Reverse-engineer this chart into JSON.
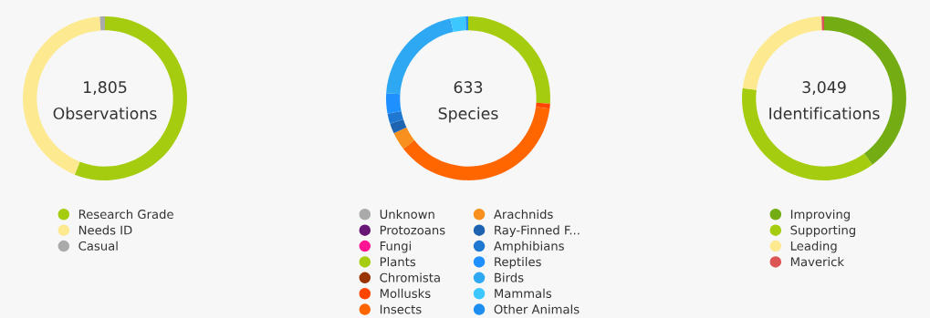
{
  "chart_data": [
    {
      "type": "donut",
      "title": "1,805",
      "subtitle": "Observations",
      "legend": "bottom",
      "marker": "circle",
      "categories": [
        "Research Grade",
        "Needs ID",
        "Casual"
      ],
      "values": [
        56,
        43,
        1
      ],
      "colors": [
        "#a5cc0e",
        "#fde98f",
        "#aaaaaa"
      ]
    },
    {
      "type": "donut",
      "title": "633",
      "subtitle": "Species",
      "legend": "bottom",
      "marker": "circle",
      "categories": [
        "Unknown",
        "Protozoans",
        "Fungi",
        "Plants",
        "Chromista",
        "Mollusks",
        "Insects",
        "Arachnids",
        "Ray-Finned F...",
        "Amphibians",
        "Reptiles",
        "Birds",
        "Mammals",
        "Other Animals"
      ],
      "values": [
        0,
        0,
        0,
        26,
        0,
        1,
        37.5,
        3.5,
        2,
        2,
        4,
        20.5,
        3,
        0.5
      ],
      "colors": [
        "#aaaaaa",
        "#691776",
        "#ff1493",
        "#a5cc0e",
        "#993300",
        "#ff4500",
        "#ff6600",
        "#f7901e",
        "#1e63b0",
        "#1e78d2",
        "#1e90ff",
        "#2ea8f2",
        "#3cc8ff",
        "#1e8ef0"
      ]
    },
    {
      "type": "donut",
      "title": "3,049",
      "subtitle": "Identifications",
      "legend": "bottom",
      "marker": "circle",
      "categories": [
        "Improving",
        "Supporting",
        "Leading",
        "Maverick"
      ],
      "values": [
        40,
        37,
        22.5,
        0.5
      ],
      "colors": [
        "#73ac13",
        "#a5cc0e",
        "#fde98f",
        "#dc5454"
      ]
    }
  ]
}
